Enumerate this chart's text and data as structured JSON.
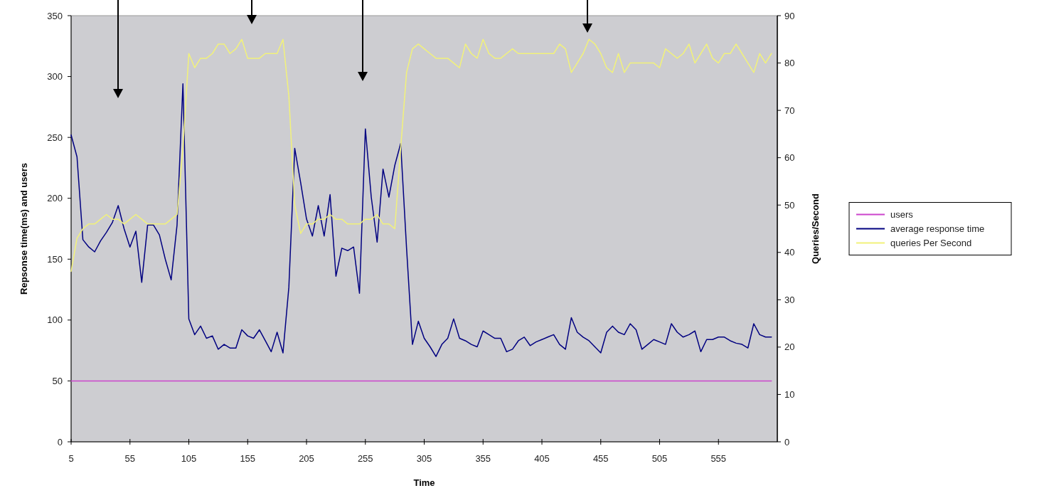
{
  "chart_data": {
    "type": "line",
    "xlabel": "Time",
    "ylabel": "Repsonse time(ms) and users",
    "y2label": "Queries/Second",
    "x": [
      5,
      10,
      15,
      20,
      25,
      30,
      35,
      40,
      45,
      50,
      55,
      60,
      65,
      70,
      75,
      80,
      85,
      90,
      95,
      100,
      105,
      110,
      115,
      120,
      125,
      130,
      135,
      140,
      145,
      150,
      155,
      160,
      165,
      170,
      175,
      180,
      185,
      190,
      195,
      200,
      205,
      210,
      215,
      220,
      225,
      230,
      235,
      240,
      245,
      250,
      255,
      260,
      265,
      270,
      275,
      280,
      285,
      290,
      295,
      300,
      305,
      310,
      315,
      320,
      325,
      330,
      335,
      340,
      345,
      350,
      355,
      360,
      365,
      370,
      375,
      380,
      385,
      390,
      395,
      400,
      405,
      410,
      415,
      420,
      425,
      430,
      435,
      440,
      445,
      450,
      455,
      460,
      465,
      470,
      475,
      480,
      485,
      490,
      495,
      500,
      505,
      510,
      515,
      520,
      525,
      530,
      535,
      540,
      545,
      550,
      555,
      560,
      565,
      570,
      575,
      580,
      585,
      590,
      595,
      600
    ],
    "xlim": [
      5,
      605
    ],
    "xticks": [
      5,
      55,
      105,
      155,
      205,
      255,
      305,
      355,
      405,
      455,
      505,
      555
    ],
    "ylim": [
      0,
      350
    ],
    "yticks": [
      0,
      50,
      100,
      150,
      200,
      250,
      300,
      350
    ],
    "y2lim": [
      0,
      90
    ],
    "y2ticks": [
      0,
      10,
      20,
      30,
      40,
      50,
      60,
      70,
      80,
      90
    ],
    "legend": "right",
    "series": [
      {
        "name": "users",
        "color": "#cc44cc",
        "x": [
          5,
          600
        ],
        "values": [
          50,
          50
        ]
      },
      {
        "name": "average response time",
        "color": "#000080",
        "values": [
          252,
          234,
          166,
          160,
          156,
          165,
          172,
          180,
          194,
          175,
          160,
          173,
          131,
          178,
          178,
          170,
          150,
          133,
          178,
          294,
          101,
          88,
          95,
          85,
          87,
          76,
          80,
          77,
          77,
          92,
          87,
          85,
          92,
          83,
          74,
          90,
          73,
          127,
          241,
          213,
          183,
          169,
          194,
          169,
          203,
          136,
          159,
          157,
          160,
          122,
          257,
          201,
          164,
          224,
          201,
          227,
          245,
          159,
          80,
          99,
          85,
          78,
          70,
          80,
          85,
          101,
          85,
          83,
          80,
          78,
          91,
          88,
          85,
          85,
          74,
          76,
          83,
          86,
          79,
          82,
          84,
          86,
          88,
          80,
          76,
          102,
          90,
          86,
          83,
          78,
          73,
          90,
          95,
          90,
          88,
          97,
          92,
          76,
          80,
          84,
          82,
          80,
          97,
          90,
          86,
          88,
          91,
          74,
          84,
          84,
          86,
          86,
          83,
          81,
          80,
          77,
          97,
          88,
          86,
          86
        ]
      },
      {
        "name": "queries Per Second",
        "color": "#f2f27a",
        "axis": "y2",
        "values": [
          36,
          43,
          45,
          46,
          46,
          47,
          48,
          47,
          47,
          46,
          47,
          48,
          47,
          46,
          46,
          46,
          46,
          47,
          48,
          62,
          82,
          79,
          81,
          81,
          82,
          84,
          84,
          82,
          83,
          85,
          81,
          81,
          81,
          82,
          82,
          82,
          85,
          73,
          50,
          44,
          46,
          46,
          47,
          47,
          48,
          47,
          47,
          46,
          46,
          46,
          47,
          47,
          48,
          46,
          46,
          45,
          62,
          78,
          83,
          84,
          83,
          82,
          81,
          81,
          81,
          80,
          79,
          84,
          82,
          81,
          85,
          82,
          81,
          81,
          82,
          83,
          82,
          82,
          82,
          82,
          82,
          82,
          82,
          84,
          83,
          78,
          80,
          82,
          85,
          84,
          82,
          79,
          78,
          82,
          78,
          80,
          80,
          80,
          80,
          80,
          79,
          83,
          82,
          81,
          82,
          84,
          80,
          82,
          84,
          81,
          80,
          82,
          82,
          84,
          82,
          80,
          78,
          82,
          80,
          82
        ]
      }
    ]
  }
}
